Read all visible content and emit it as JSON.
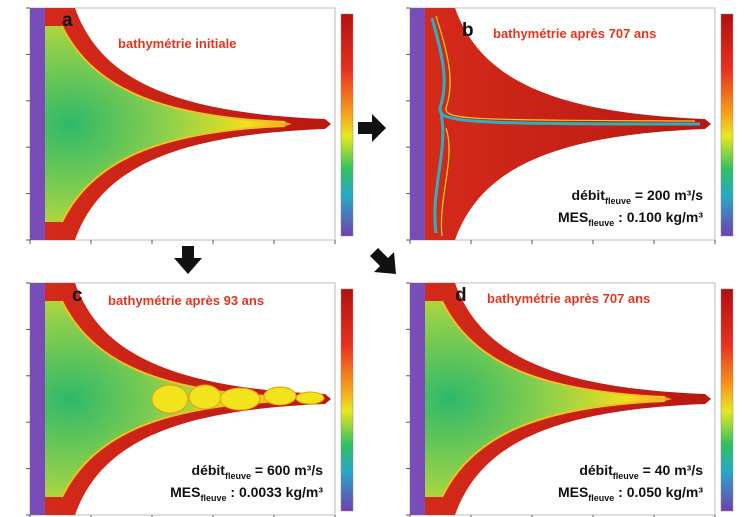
{
  "panels": [
    {
      "letter": "a",
      "title": "bathymétrie initiale"
    },
    {
      "letter": "b",
      "title": "bathymétrie après 707 ans",
      "notes": [
        {
          "label": "débit",
          "sub": "fleuve",
          "value": " = 200 m³/s"
        },
        {
          "label": "MES",
          "sub": "fleuve",
          "value": " : 0.100 kg/m³"
        }
      ]
    },
    {
      "letter": "c",
      "title": "bathymétrie après 93 ans",
      "notes": [
        {
          "label": "débit",
          "sub": "fleuve",
          "value": " = 600 m³/s"
        },
        {
          "label": "MES",
          "sub": "fleuve",
          "value": " : 0.0033 kg/m³"
        }
      ]
    },
    {
      "letter": "d",
      "title": "bathymétrie après 707 ans",
      "notes": [
        {
          "label": "débit",
          "sub": "fleuve",
          "value": " = 40 m³/s"
        },
        {
          "label": "MES",
          "sub": "fleuve",
          "value": " : 0.050 kg/m³"
        }
      ]
    }
  ]
}
